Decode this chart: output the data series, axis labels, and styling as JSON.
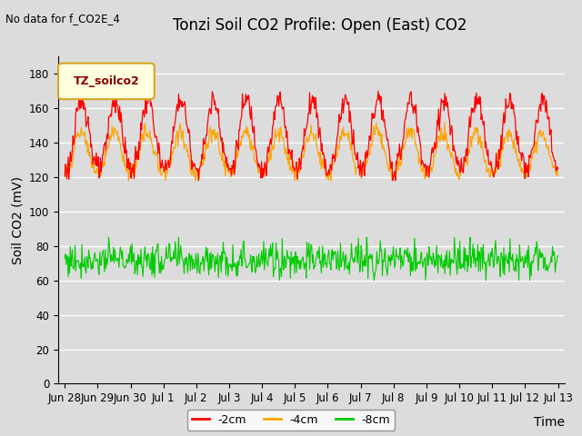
{
  "title": "Tonzi Soil CO2 Profile: Open (East) CO2",
  "no_data_label": "No data for f_CO2E_4",
  "ylabel": "Soil CO2 (mV)",
  "xlabel": "Time",
  "ylim": [
    0,
    190
  ],
  "yticks": [
    0,
    20,
    40,
    60,
    80,
    100,
    120,
    140,
    160,
    180
  ],
  "xtick_labels": [
    "Jun 28",
    "Jun 29",
    "Jun 30",
    "Jul 1",
    "Jul 2",
    "Jul 3",
    "Jul 4",
    "Jul 5",
    "Jul 6",
    "Jul 7",
    "Jul 8",
    "Jul 9",
    "Jul 10",
    "Jul 11",
    "Jul 12",
    "Jul 13"
  ],
  "legend_label": "TZ_soilco2",
  "series": {
    "neg2cm": {
      "color": "#FF0000",
      "label": "-2cm"
    },
    "neg4cm": {
      "color": "#FFA500",
      "label": "-4cm"
    },
    "neg8cm": {
      "color": "#00CC00",
      "label": "-8cm"
    }
  },
  "bg_color": "#DCDCDC",
  "plot_bg": "#DCDCDC",
  "grid_color": "#FFFFFF",
  "title_fontsize": 12,
  "axis_fontsize": 10,
  "tick_fontsize": 8.5,
  "legend_fontsize": 9
}
